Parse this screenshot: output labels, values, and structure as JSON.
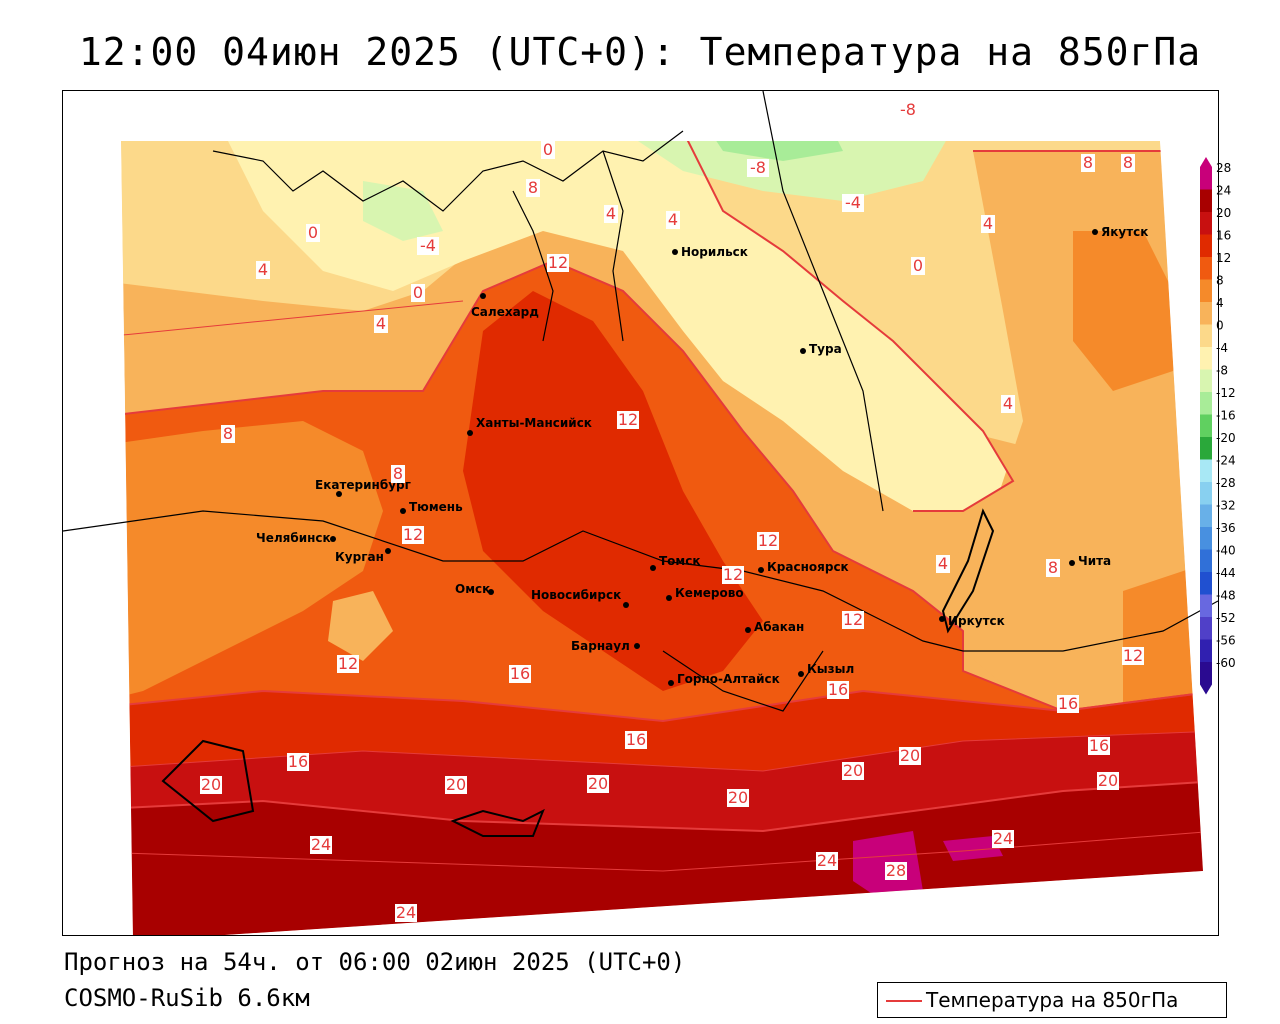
{
  "title": "12:00 04июн 2025 (UTC+0): Температура на 850гПа",
  "forecast_line": "Прогноз на 54ч. от 06:00 02июн 2025 (UTC+0)",
  "model_line": "COSMO-RuSib 6.6км",
  "legend_label": "Температура на 850гПа",
  "colorbar": {
    "levels": [
      "28",
      "24",
      "20",
      "16",
      "12",
      "8",
      "4",
      "0",
      "-4",
      "-8",
      "-12",
      "-16",
      "-20",
      "-24",
      "-28",
      "-32",
      "-36",
      "-40",
      "-44",
      "-48",
      "-52",
      "-56",
      "-60"
    ],
    "colors": [
      "#c8007a",
      "#a80000",
      "#c81010",
      "#e02a00",
      "#f05a10",
      "#f58a2a",
      "#f8b35a",
      "#fcd98a",
      "#fff2b0",
      "#d8f5b0",
      "#a8ec98",
      "#60d060",
      "#2aa83a",
      "#a8e8f5",
      "#88d0f0",
      "#68b0e8",
      "#4890e0",
      "#3070d8",
      "#2050d0",
      "#6868e0",
      "#5040c8",
      "#3020b0",
      "#2a0a90"
    ]
  },
  "cities": [
    {
      "name": "Норильск"
    },
    {
      "name": "Якутск"
    },
    {
      "name": "Салехард"
    },
    {
      "name": "Тура"
    },
    {
      "name": "Ханты-Мансийск"
    },
    {
      "name": "Екатеринбург"
    },
    {
      "name": "Тюмень"
    },
    {
      "name": "Челябинск"
    },
    {
      "name": "Курган"
    },
    {
      "name": "Омск"
    },
    {
      "name": "Новосибирск"
    },
    {
      "name": "Томск"
    },
    {
      "name": "Кемерово"
    },
    {
      "name": "Красноярск"
    },
    {
      "name": "Барнаул"
    },
    {
      "name": "Абакан"
    },
    {
      "name": "Иркутск"
    },
    {
      "name": "Чита"
    },
    {
      "name": "Кызыл"
    },
    {
      "name": "Горно-Алтайск"
    }
  ],
  "contour_labels": [
    "-8",
    "-8",
    "-4",
    "-4",
    "0",
    "0",
    "0",
    "0",
    "4",
    "4",
    "4",
    "4",
    "4",
    "4",
    "4",
    "8",
    "8",
    "8",
    "8",
    "8",
    "8",
    "12",
    "12",
    "12",
    "12",
    "12",
    "12",
    "12",
    "12",
    "16",
    "16",
    "16",
    "16",
    "16",
    "16",
    "20",
    "20",
    "20",
    "20",
    "20",
    "20",
    "20",
    "24",
    "24",
    "24",
    "24",
    "28"
  ],
  "colors": {
    "contour_line": "#e53b3b",
    "city_dot": "#000000"
  }
}
